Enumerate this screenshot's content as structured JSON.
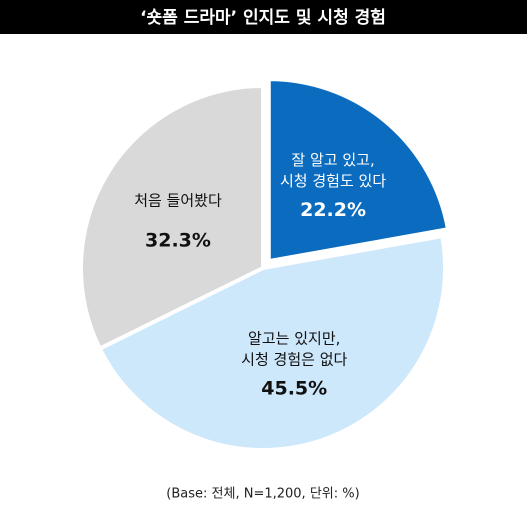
{
  "chart_data": {
    "type": "pie",
    "title": "‘숏폼 드라마’ 인지도 및 시청 경험",
    "categories": [
      "잘 알고 있고,\n시청 경험도 있다",
      "알고는 있지만,\n시청 경험은 없다",
      "처음 들어봤다"
    ],
    "values": [
      22.2,
      45.5,
      32.3
    ],
    "value_labels": [
      "22.2%",
      "45.5%",
      "32.3%"
    ],
    "colors": [
      "#0b6cbf",
      "#cde7fb",
      "#d9d9d9"
    ],
    "exploded": [
      true,
      false,
      false
    ],
    "footnote": "(Base: 전체, N=1,200, 단위: %)"
  }
}
